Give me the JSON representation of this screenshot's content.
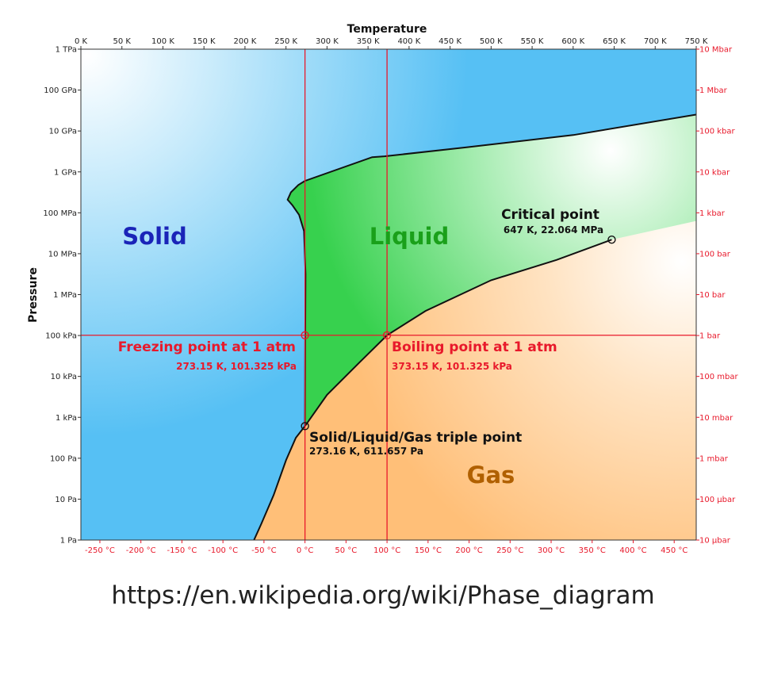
{
  "chart_data": {
    "type": "phase-diagram",
    "axes": {
      "x_top": {
        "label": "Temperature",
        "range_K": [
          0,
          750
        ],
        "ticks": [
          {
            "value": 0,
            "label": "0 K"
          },
          {
            "value": 50,
            "label": "50 K"
          },
          {
            "value": 100,
            "label": "100 K"
          },
          {
            "value": 150,
            "label": "150 K"
          },
          {
            "value": 200,
            "label": "200 K"
          },
          {
            "value": 250,
            "label": "250 K"
          },
          {
            "value": 300,
            "label": "300 K"
          },
          {
            "value": 350,
            "label": "350 K"
          },
          {
            "value": 400,
            "label": "400 K"
          },
          {
            "value": 450,
            "label": "450 K"
          },
          {
            "value": 500,
            "label": "500 K"
          },
          {
            "value": 550,
            "label": "550 K"
          },
          {
            "value": 600,
            "label": "600 K"
          },
          {
            "value": 650,
            "label": "650 K"
          },
          {
            "value": 700,
            "label": "700 K"
          },
          {
            "value": 750,
            "label": "750 K"
          }
        ]
      },
      "x_bottom": {
        "ticks": [
          {
            "value": 23.15,
            "label": "-250 °C"
          },
          {
            "value": 73.15,
            "label": "-200 °C"
          },
          {
            "value": 123.15,
            "label": "-150 °C"
          },
          {
            "value": 173.15,
            "label": "-100 °C"
          },
          {
            "value": 223.15,
            "label": "-50 °C"
          },
          {
            "value": 273.15,
            "label": "0 °C"
          },
          {
            "value": 323.15,
            "label": "50 °C"
          },
          {
            "value": 373.15,
            "label": "100 °C"
          },
          {
            "value": 423.15,
            "label": "150 °C"
          },
          {
            "value": 473.15,
            "label": "200 °C"
          },
          {
            "value": 523.15,
            "label": "250 °C"
          },
          {
            "value": 573.15,
            "label": "300 °C"
          },
          {
            "value": 623.15,
            "label": "350 °C"
          },
          {
            "value": 673.15,
            "label": "400 °C"
          },
          {
            "value": 723.15,
            "label": "450 °C"
          }
        ]
      },
      "y_left": {
        "label": "Pressure",
        "scale": "log",
        "range_log10_Pa": [
          0,
          12
        ],
        "ticks": [
          {
            "value": 12,
            "label": "1 TPa"
          },
          {
            "value": 11,
            "label": "100 GPa"
          },
          {
            "value": 10,
            "label": "10 GPa"
          },
          {
            "value": 9,
            "label": "1 GPa"
          },
          {
            "value": 8,
            "label": "100 MPa"
          },
          {
            "value": 7,
            "label": "10 MPa"
          },
          {
            "value": 6,
            "label": "1 MPa"
          },
          {
            "value": 5,
            "label": "100 kPa"
          },
          {
            "value": 4,
            "label": "10 kPa"
          },
          {
            "value": 3,
            "label": "1 kPa"
          },
          {
            "value": 2,
            "label": "100 Pa"
          },
          {
            "value": 1,
            "label": "10 Pa"
          },
          {
            "value": 0,
            "label": "1 Pa"
          }
        ]
      },
      "y_right": {
        "ticks": [
          {
            "value": 12,
            "label": "10 Mbar"
          },
          {
            "value": 11,
            "label": "1 Mbar"
          },
          {
            "value": 10,
            "label": "100 kbar"
          },
          {
            "value": 9,
            "label": "10 kbar"
          },
          {
            "value": 8,
            "label": "1 kbar"
          },
          {
            "value": 7,
            "label": "100 bar"
          },
          {
            "value": 6,
            "label": "10 bar"
          },
          {
            "value": 5,
            "label": "1 bar"
          },
          {
            "value": 4,
            "label": "100 mbar"
          },
          {
            "value": 3,
            "label": "10 mbar"
          },
          {
            "value": 2,
            "label": "1 mbar"
          },
          {
            "value": 1,
            "label": "100 µbar"
          },
          {
            "value": 0,
            "label": "10 µbar"
          }
        ]
      }
    },
    "phases": [
      {
        "name": "Solid",
        "color": "#1a24b8",
        "at": {
          "T": 180,
          "log10P": 7.5
        }
      },
      {
        "name": "Liquid",
        "color": "#1aa01a",
        "at": {
          "T": 397,
          "log10P": 7.5
        }
      },
      {
        "name": "Gas",
        "color": "#b06000",
        "at": {
          "T": 500,
          "log10P": 1.6
        }
      }
    ],
    "curves": {
      "sublimation": [
        [
          211,
          0
        ],
        [
          220,
          0.4
        ],
        [
          235,
          1.1
        ],
        [
          250,
          1.95
        ],
        [
          262,
          2.5
        ],
        [
          273.16,
          2.786
        ]
      ],
      "melting": [
        [
          273.16,
          2.786
        ],
        [
          273.4,
          5.0
        ],
        [
          273.8,
          6.5
        ],
        [
          272,
          7.55
        ],
        [
          266,
          7.95
        ],
        [
          258,
          8.18
        ],
        [
          252,
          8.32
        ],
        [
          256,
          8.5
        ],
        [
          265,
          8.68
        ],
        [
          273.15,
          8.78
        ],
        [
          355,
          9.36
        ],
        [
          370,
          9.38
        ],
        [
          470,
          9.6
        ],
        [
          600,
          9.9
        ],
        [
          750,
          10.4
        ]
      ],
      "vaporization": [
        [
          273.16,
          2.786
        ],
        [
          300,
          3.55
        ],
        [
          340,
          4.35
        ],
        [
          373.15,
          5.006
        ],
        [
          420,
          5.6
        ],
        [
          500,
          6.35
        ],
        [
          580,
          6.85
        ],
        [
          647,
          7.344
        ]
      ]
    },
    "points": [
      {
        "name": "Critical point",
        "label": "Critical point",
        "detail": "647 K, 22.064 MPa",
        "T": 647,
        "log10P": 7.344,
        "color": "#111111"
      },
      {
        "name": "Triple point",
        "label": "Solid/Liquid/Gas triple point",
        "detail": "273.16 K, 611.657 Pa",
        "T": 273.16,
        "log10P": 2.786,
        "color": "#111111"
      },
      {
        "name": "Freezing point",
        "label": "Freezing point at 1 atm",
        "detail": "273.15 K, 101.325 kPa",
        "T": 273.15,
        "log10P": 5.006,
        "color": "#e8192b"
      },
      {
        "name": "Boiling point",
        "label": "Boiling point at 1 atm",
        "detail": "373.15 K, 101.325 kPa",
        "T": 373.15,
        "log10P": 5.006,
        "color": "#e8192b"
      }
    ],
    "reference_lines": {
      "vertical_K": [
        273.15,
        373.15
      ],
      "horizontal_log10P": 5.006,
      "color": "#e8192b"
    },
    "colors": {
      "solid_region": "#5ec4f5",
      "liquid_region": "#3ed454",
      "gas_region": "#ffc07a",
      "highlight": "#ffffff",
      "red": "#e8192b"
    }
  },
  "footer": {
    "url": "https://en.wikipedia.org/wiki/Phase_diagram"
  }
}
